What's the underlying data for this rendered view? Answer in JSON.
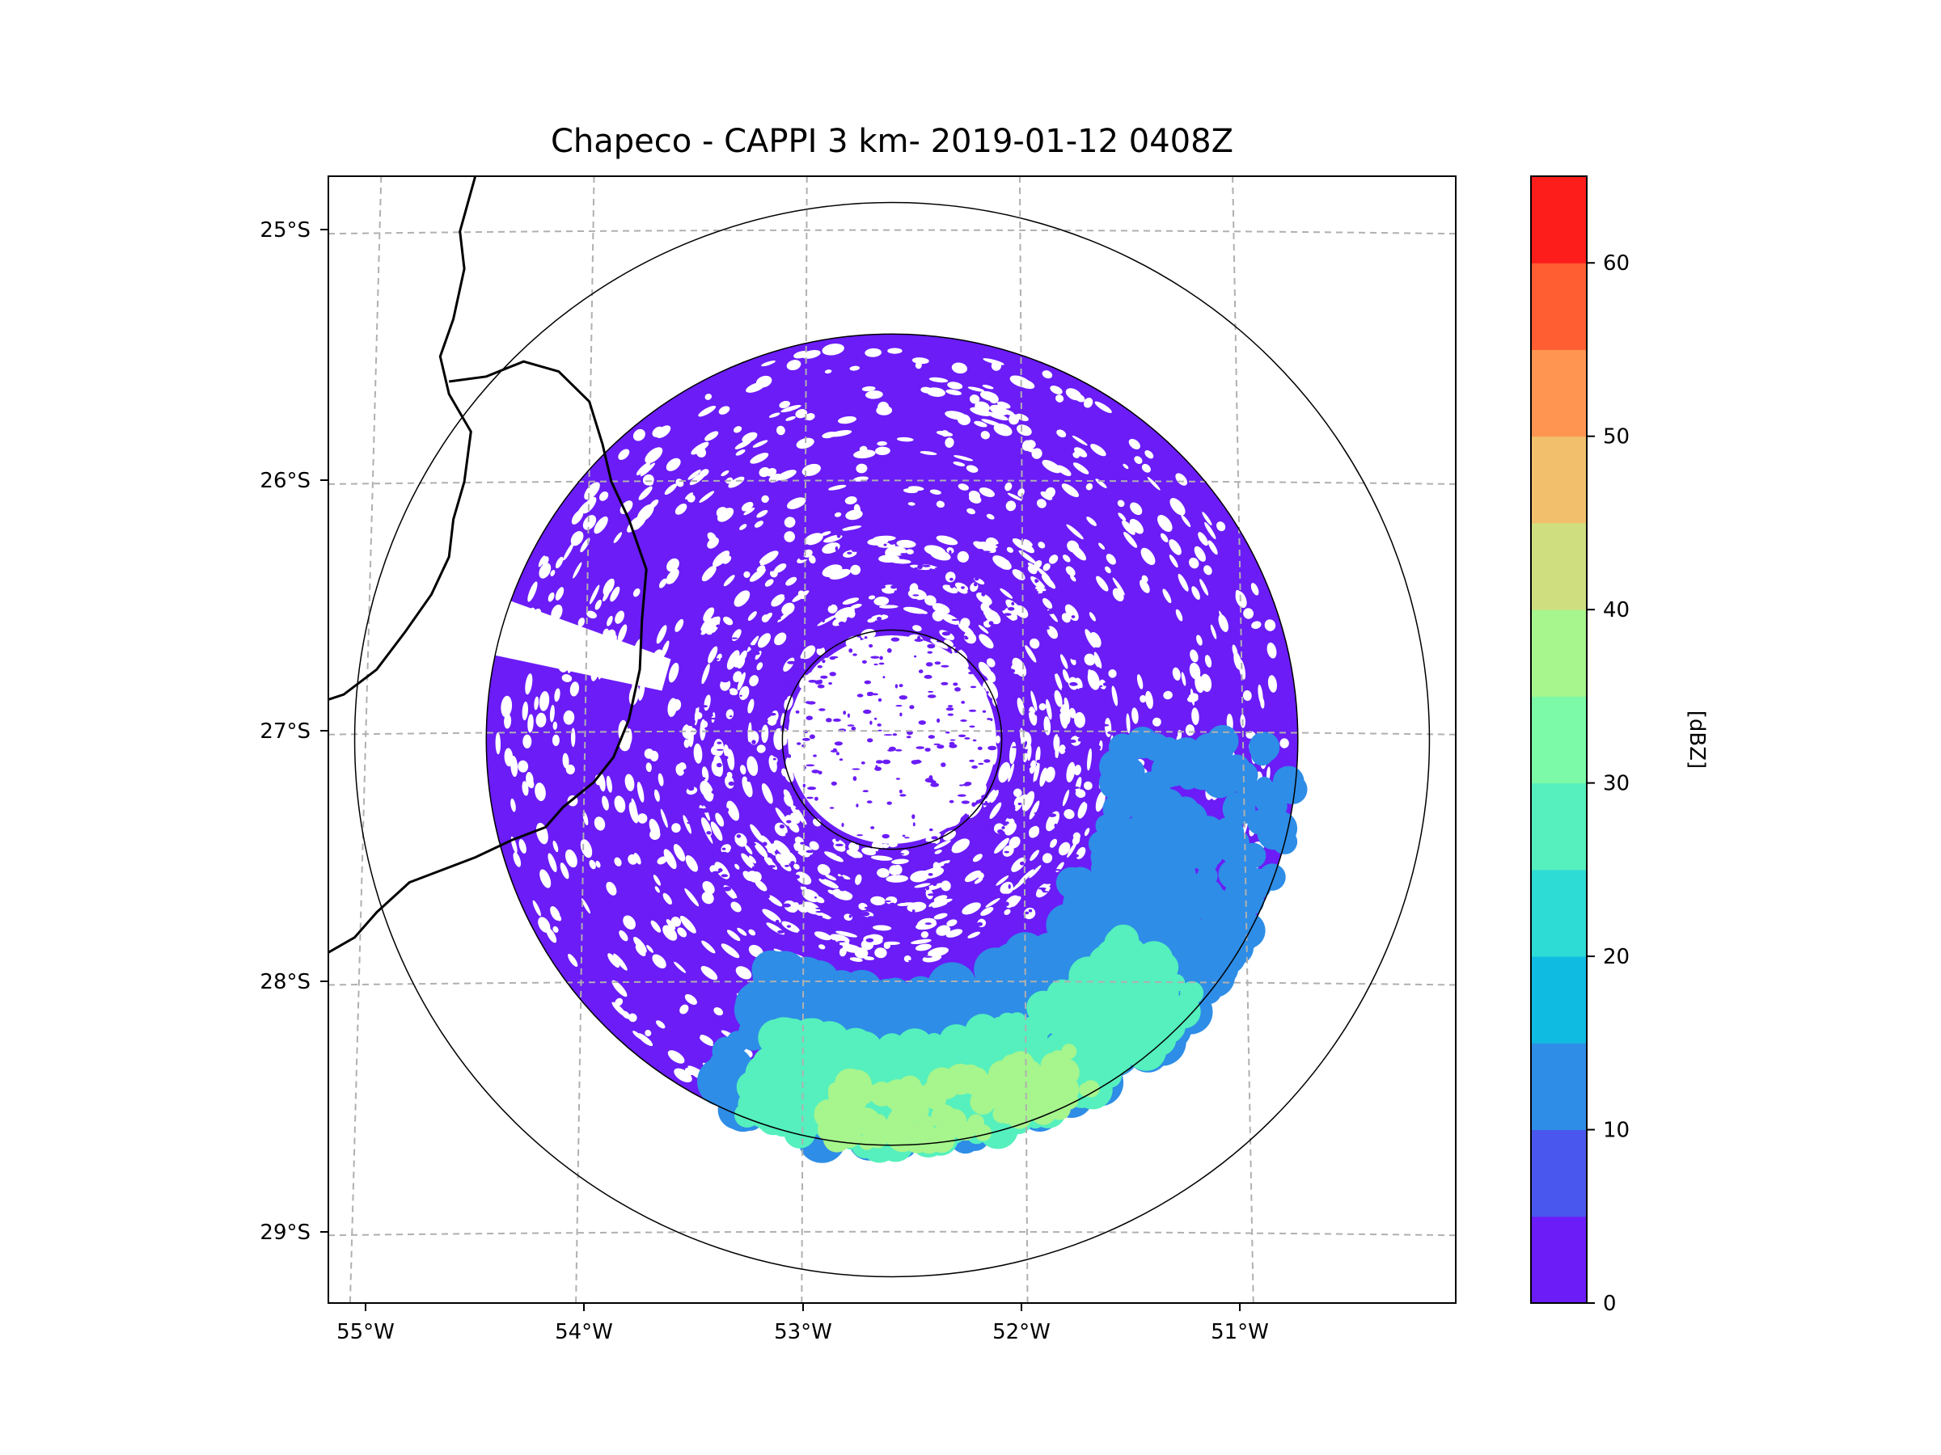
{
  "chart_data": {
    "type": "heatmap",
    "title": "Chapeco - CAPPI 3 km- 2019-01-12 0408Z",
    "x_ticks": [
      "55°W",
      "54°W",
      "53°W",
      "52°W",
      "51°W"
    ],
    "x_tick_values": [
      -55,
      -54,
      -53,
      -52,
      -51
    ],
    "y_ticks": [
      "25°S",
      "26°S",
      "27°S",
      "28°S",
      "29°S"
    ],
    "y_tick_values": [
      -25,
      -26,
      -27,
      -28,
      -29
    ],
    "xlim": [
      -55.17,
      -50.03
    ],
    "ylim": [
      -29.28,
      -24.78
    ],
    "radar_center": {
      "lon": -52.6,
      "lat": -27.03
    },
    "range_rings_deg": [
      0.5,
      1.85,
      2.45
    ],
    "grid": "dashed",
    "colorbar": {
      "label": "[dBZ]",
      "min": 0,
      "max": 65,
      "step": 5,
      "ticks": [
        "0",
        "10",
        "20",
        "30",
        "40",
        "50",
        "60"
      ],
      "tick_values": [
        0,
        10,
        20,
        30,
        40,
        50,
        60
      ],
      "colors": [
        "#6b1cf7",
        "#4a57ee",
        "#2e8de6",
        "#10bbe2",
        "#2edcd6",
        "#55f0bd",
        "#7dfaa7",
        "#a6f58d",
        "#cfdf80",
        "#f2bf6d",
        "#ff9550",
        "#ff5d32",
        "#fd1d1b"
      ]
    },
    "fields": [
      {
        "name": "background-echo",
        "dbz": 2
      },
      {
        "name": "southeast-echo-moderate",
        "dbz": 12
      },
      {
        "name": "southeast-echo-strong",
        "dbz": 25
      },
      {
        "name": "southeast-echo-core",
        "dbz": 37
      }
    ]
  }
}
